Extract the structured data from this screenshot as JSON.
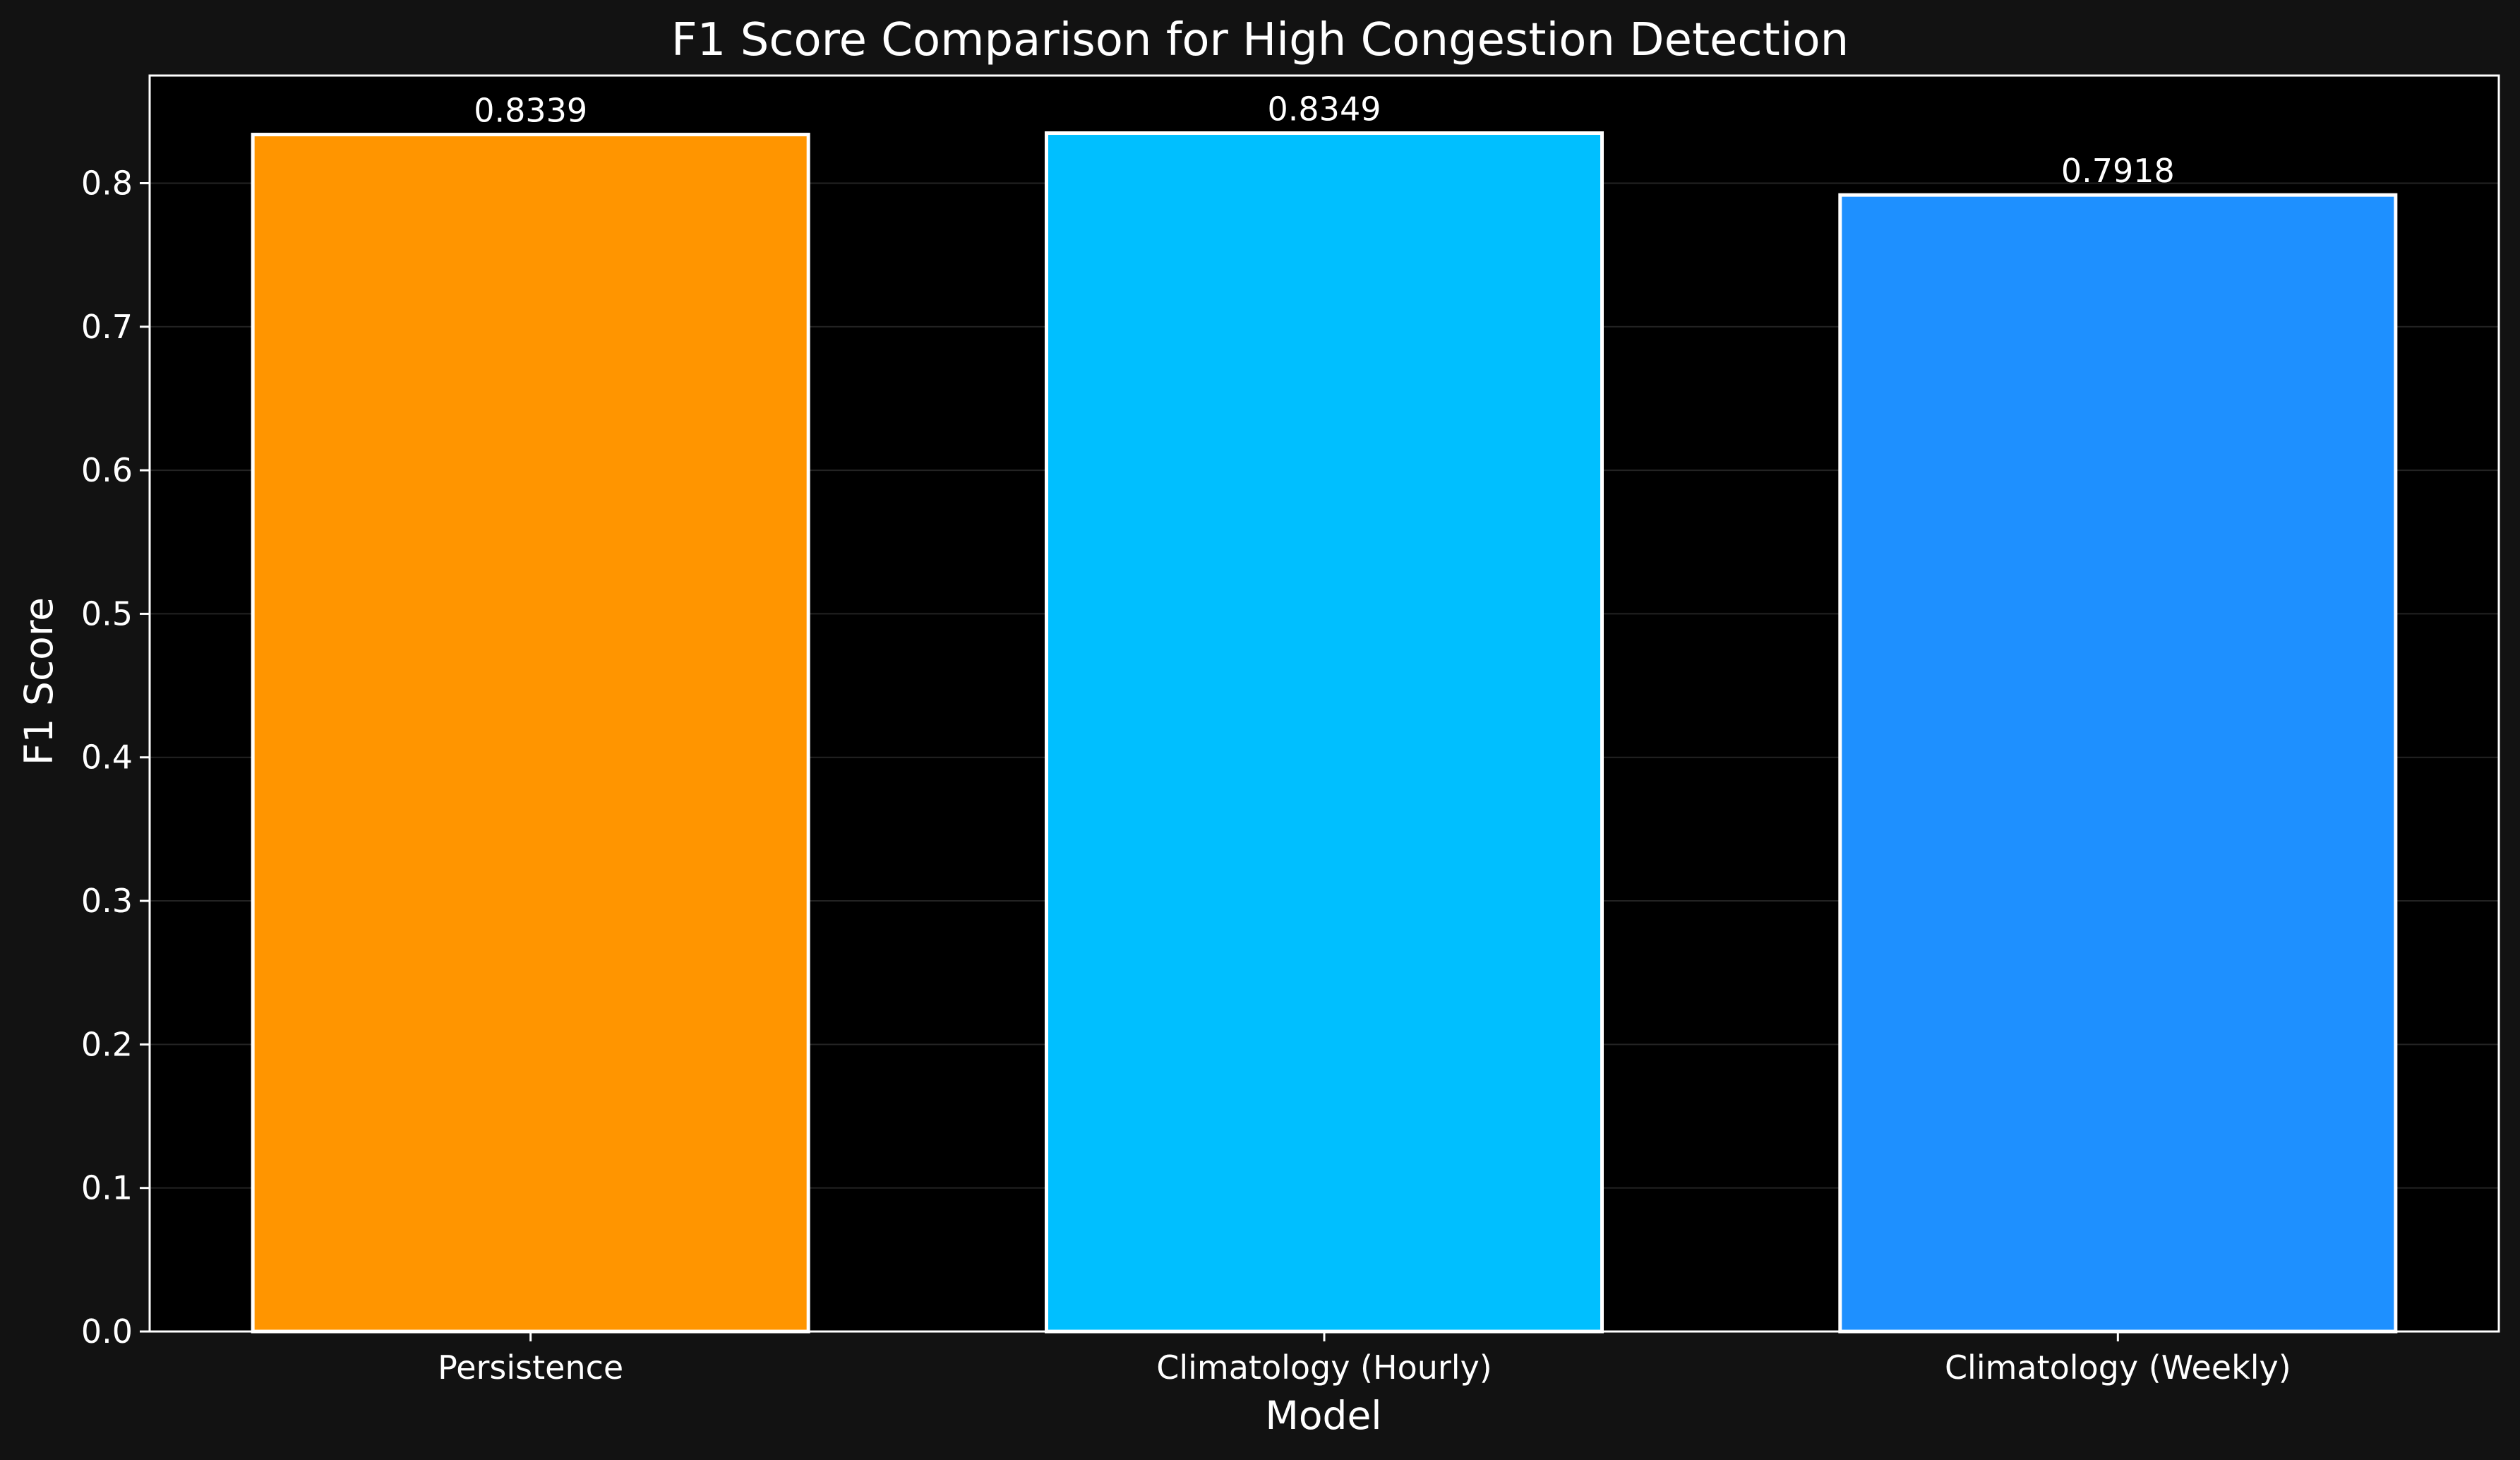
{
  "chart_data": {
    "type": "bar",
    "title": "F1 Score Comparison for High Congestion Detection",
    "xlabel": "Model",
    "ylabel": "F1 Score",
    "categories": [
      "Persistence",
      "Climatology (Hourly)",
      "Climatology (Weekly)"
    ],
    "values": [
      0.8339,
      0.8349,
      0.7918
    ],
    "value_labels": [
      "0.8339",
      "0.8349",
      "0.7918"
    ],
    "colors": [
      "#ff9500",
      "#00bfff",
      "#1e90ff"
    ],
    "ylim": [
      0,
      0.875
    ],
    "yticks": [
      0.0,
      0.1,
      0.2,
      0.3,
      0.4,
      0.5,
      0.6,
      0.7,
      0.8
    ],
    "ytick_labels": [
      "0.0",
      "0.1",
      "0.2",
      "0.3",
      "0.4",
      "0.5",
      "0.6",
      "0.7",
      "0.8"
    ],
    "grid": true,
    "background_color": "#000000",
    "figure_color": "#121212",
    "bar_edge_color": "#ffffff"
  }
}
